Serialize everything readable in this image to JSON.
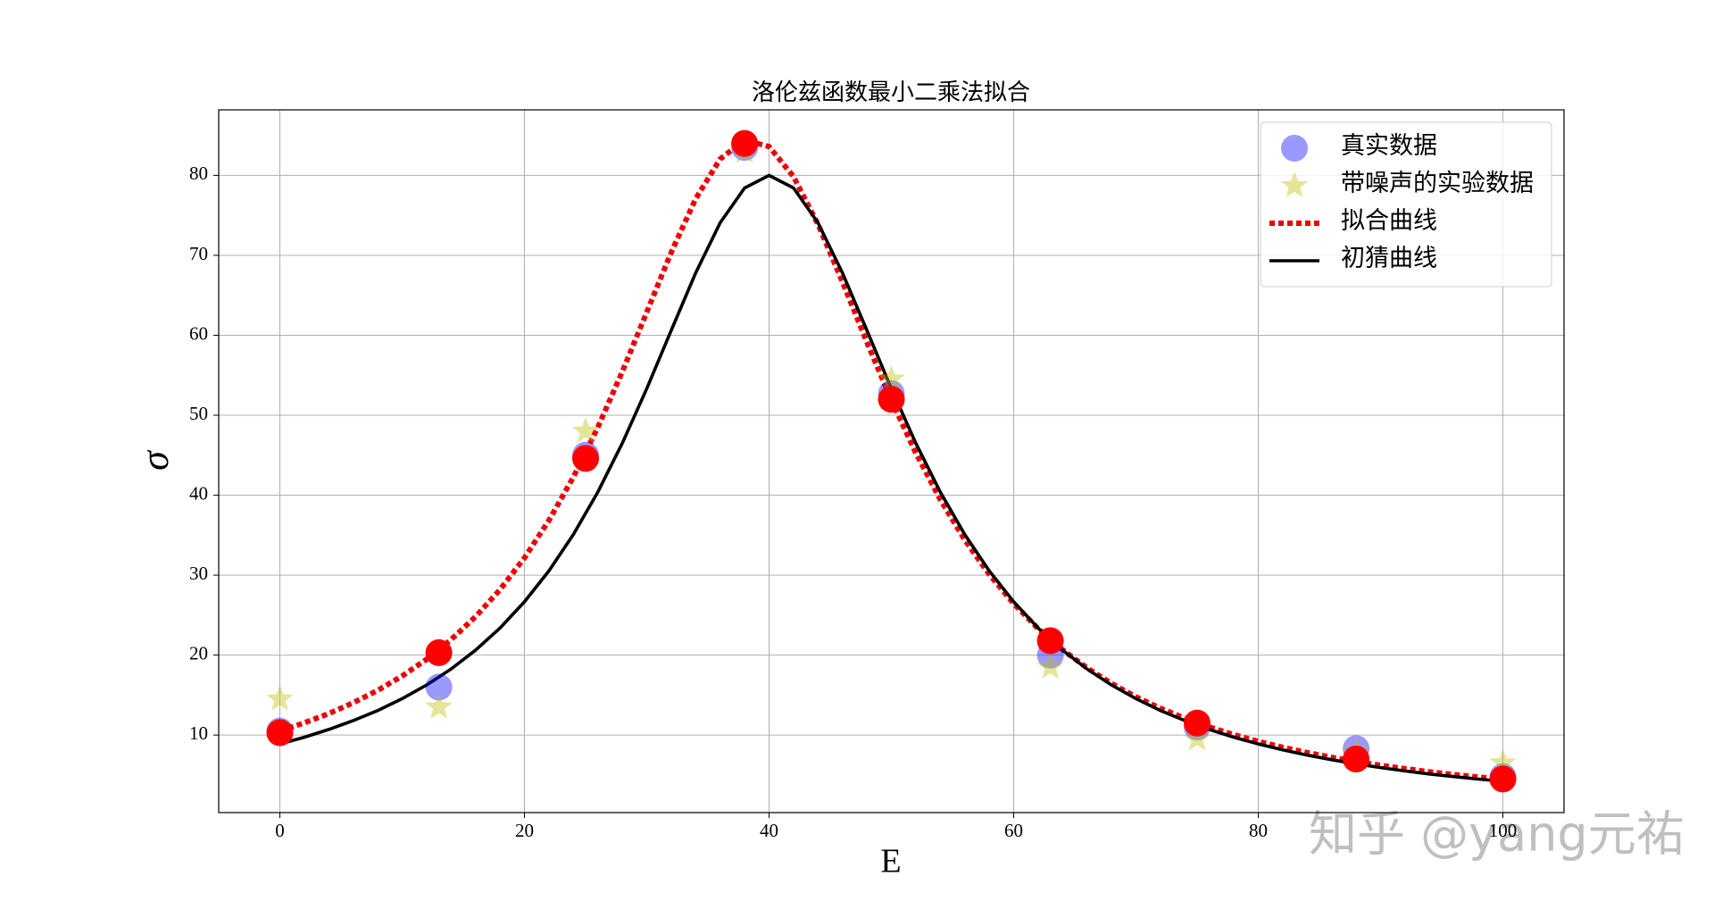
{
  "chart_data": {
    "type": "line",
    "title": "洛伦兹函数最小二乘法拟合",
    "xlabel": "E",
    "ylabel": "σ",
    "xlim": [
      -5,
      105
    ],
    "ylim": [
      0.3,
      88.2
    ],
    "xticks": [
      0,
      20,
      40,
      60,
      80,
      100
    ],
    "yticks": [
      10,
      20,
      30,
      40,
      50,
      60,
      70,
      80
    ],
    "grid": true,
    "legend": "upper right",
    "watermark": "知乎 @yang元祐",
    "series": [
      {
        "name": "真实数据",
        "type": "scatter",
        "marker": "o",
        "color": "#0000ff",
        "alpha": 0.4,
        "x": [
          0,
          13,
          25,
          38,
          50,
          63,
          75,
          88,
          100
        ],
        "values": [
          10.5,
          16,
          45,
          83.5,
          52.7,
          20,
          11,
          8.3,
          4.8
        ]
      },
      {
        "name": "带噪声的实验数据",
        "type": "scatter",
        "marker": "*",
        "color": "#bfbf00",
        "alpha": 0.4,
        "x": [
          0,
          13,
          25,
          38,
          50,
          63,
          75,
          88,
          100
        ],
        "values": [
          14.5,
          13.5,
          48,
          83,
          54.5,
          18.5,
          9.5,
          8,
          6.5
        ]
      },
      {
        "name": "拟合曲线",
        "type": "line",
        "linestyle": ":",
        "color": "#ee0000",
        "x": [
          0,
          2,
          4,
          6,
          8,
          10,
          12,
          14,
          16,
          18,
          20,
          22,
          24,
          26,
          28,
          30,
          32,
          34,
          36,
          38,
          40,
          42,
          44,
          46,
          48,
          50,
          52,
          54,
          56,
          58,
          60,
          62,
          64,
          66,
          68,
          70,
          72,
          74,
          76,
          78,
          80,
          82,
          84,
          86,
          88,
          90,
          92,
          94,
          96,
          98,
          100
        ],
        "values": [
          10.5,
          11.53,
          12.69,
          14.04,
          15.59,
          17.39,
          19.48,
          21.93,
          24.81,
          28.19,
          32.17,
          36.84,
          42.27,
          48.49,
          55.45,
          62.9,
          70.37,
          77.08,
          82.06,
          84.4,
          83.61,
          79.85,
          73.88,
          66.68,
          59.13,
          51.89,
          45.28,
          39.45,
          34.41,
          30.1,
          26.43,
          23.31,
          20.66,
          18.39,
          16.45,
          14.78,
          13.34,
          12.09,
          11.0,
          10.04,
          9.2,
          8.46,
          7.8,
          7.21,
          6.68,
          6.21,
          5.79,
          5.4,
          5.06,
          4.74,
          4.45
        ]
      },
      {
        "name": "初猜曲线",
        "type": "line",
        "linestyle": "-",
        "color": "#000000",
        "x": [
          0,
          2,
          4,
          6,
          8,
          10,
          12,
          14,
          16,
          18,
          20,
          22,
          24,
          26,
          28,
          30,
          32,
          34,
          36,
          38,
          40,
          42,
          44,
          46,
          48,
          50,
          52,
          54,
          56,
          58,
          60,
          62,
          64,
          66,
          68,
          70,
          72,
          74,
          76,
          78,
          80,
          82,
          84,
          86,
          88,
          90,
          92,
          94,
          96,
          98,
          100
        ],
        "values": [
          8.89,
          9.73,
          10.7,
          11.8,
          13.07,
          14.55,
          16.26,
          18.26,
          20.62,
          23.39,
          26.67,
          30.53,
          35.09,
          40.4,
          46.51,
          53.33,
          60.61,
          67.8,
          74.07,
          78.43,
          80,
          78.43,
          74.07,
          67.8,
          60.61,
          53.33,
          46.51,
          40.4,
          35.09,
          30.53,
          26.67,
          23.39,
          20.62,
          18.26,
          16.26,
          14.55,
          13.07,
          11.8,
          10.7,
          9.73,
          8.89,
          8.15,
          7.49,
          6.91,
          6.39,
          5.93,
          5.51,
          5.13,
          4.8,
          4.49,
          4.21
        ]
      },
      {
        "type": "scatter",
        "marker": "o",
        "color": "#ff0000",
        "alpha": 1,
        "x": [
          0,
          13,
          25,
          38,
          50,
          63,
          75,
          88,
          100
        ],
        "values": [
          10.3,
          20.3,
          44.6,
          84,
          52,
          21.8,
          11.5,
          7,
          4.5
        ]
      }
    ]
  }
}
